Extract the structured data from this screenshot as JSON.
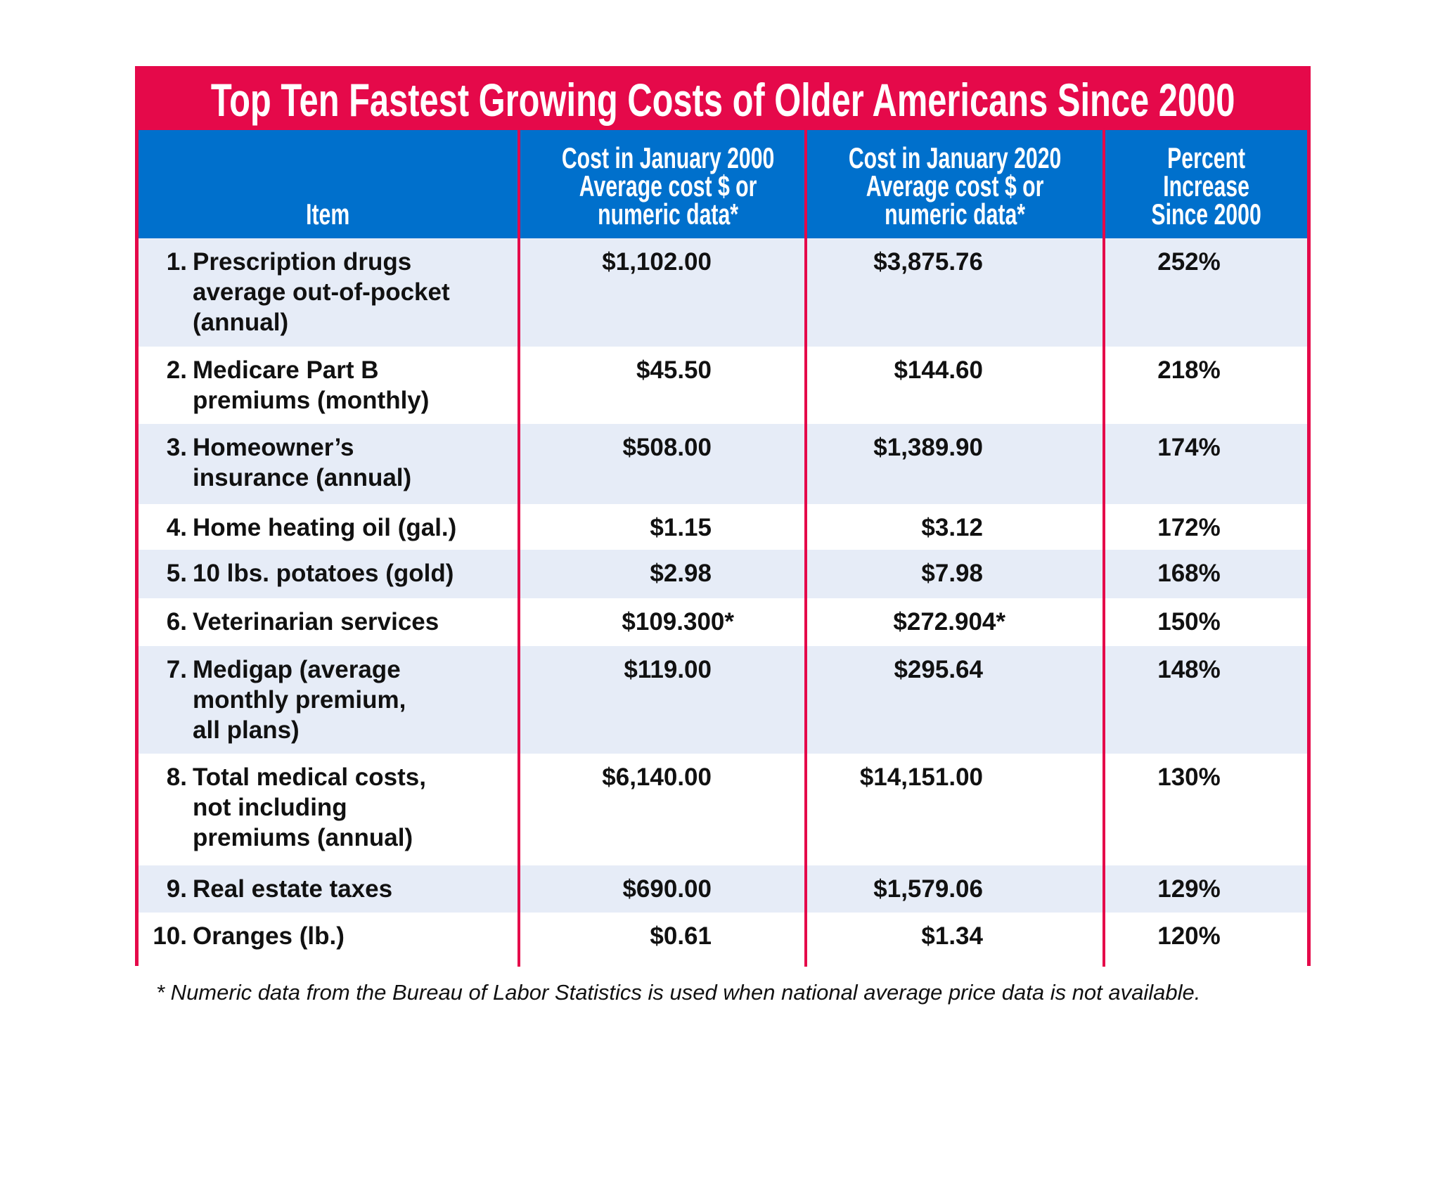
{
  "title": "Top Ten Fastest Growing Costs of Older Americans Since 2000",
  "headers": {
    "item": "Item",
    "cost2000": [
      "Cost in January 2000",
      "Average cost $ or",
      "numeric data*"
    ],
    "cost2020": [
      "Cost in January 2020",
      "Average cost $ or",
      "numeric data*"
    ],
    "percent": [
      "Percent",
      "Increase",
      "Since 2000"
    ]
  },
  "rows": [
    {
      "num": "1.",
      "item": [
        "Prescription drugs",
        "average out-of-pocket",
        "(annual)"
      ],
      "cost2000": "$1,102.00",
      "cost2020": "$3,875.76",
      "percent": "252%"
    },
    {
      "num": "2.",
      "item": [
        "Medicare Part B",
        "premiums (monthly)"
      ],
      "cost2000": "$45.50",
      "cost2020": "$144.60",
      "percent": "218%"
    },
    {
      "num": "3.",
      "item": [
        "Homeowner’s",
        "insurance (annual)"
      ],
      "cost2000": "$508.00",
      "cost2020": "$1,389.90",
      "percent": "174%"
    },
    {
      "num": "4.",
      "item": [
        "Home heating oil (gal.)"
      ],
      "cost2000": "$1.15",
      "cost2020": "$3.12",
      "percent": "172%"
    },
    {
      "num": "5.",
      "item": [
        "10 lbs. potatoes (gold)"
      ],
      "cost2000": "$2.98",
      "cost2020": "$7.98",
      "percent": "168%"
    },
    {
      "num": "6.",
      "item": [
        "Veterinarian services"
      ],
      "cost2000": "$109.300*",
      "cost2020": "$272.904*",
      "percent": "150%"
    },
    {
      "num": "7.",
      "item": [
        "Medigap (average",
        "monthly premium,",
        "all plans)"
      ],
      "cost2000": "$119.00",
      "cost2020": "$295.64",
      "percent": "148%"
    },
    {
      "num": "8.",
      "item": [
        "Total medical costs,",
        "not including",
        "premiums (annual)"
      ],
      "cost2000": "$6,140.00",
      "cost2020": "$14,151.00",
      "percent": "130%"
    },
    {
      "num": "9.",
      "item": [
        "Real estate taxes"
      ],
      "cost2000": "$690.00",
      "cost2020": "$1,579.06",
      "percent": "129%"
    },
    {
      "num": "10.",
      "item": [
        "Oranges (lb.)"
      ],
      "cost2000": "$0.61",
      "cost2020": "$1.34",
      "percent": "120%"
    }
  ],
  "footnote": "* Numeric data from the Bureau of Labor Statistics is used when national average price data is not available.",
  "colors": {
    "border": "#E5094A",
    "header": "#0070CC",
    "row_shade": "#E6ECF7"
  }
}
